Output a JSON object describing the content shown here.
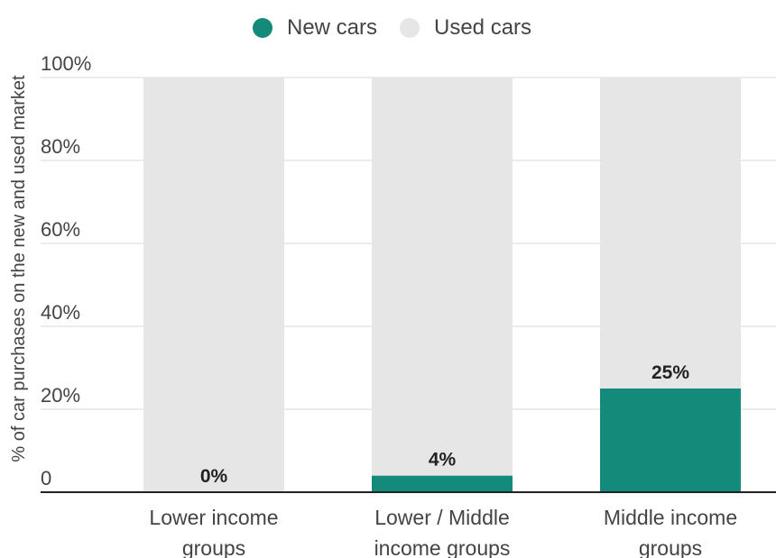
{
  "chart_data": {
    "type": "bar",
    "stacked": true,
    "categories": [
      [
        "Lower income",
        "groups"
      ],
      [
        "Lower / Middle",
        "income groups"
      ],
      [
        "Middle income",
        "groups"
      ]
    ],
    "series": [
      {
        "name": "New cars",
        "color": "#138a7a",
        "values": [
          0,
          4,
          25
        ]
      },
      {
        "name": "Used cars",
        "color": "#e6e6e6",
        "values": [
          100,
          96,
          75
        ]
      }
    ],
    "value_labels": [
      "0%",
      "4%",
      "25%"
    ],
    "ylabel": "% of car purchases on the new and used market",
    "yticks": [
      {
        "value": 0,
        "label": "0"
      },
      {
        "value": 20,
        "label": "20%"
      },
      {
        "value": 40,
        "label": "40%"
      },
      {
        "value": 60,
        "label": "60%"
      },
      {
        "value": 80,
        "label": "80%"
      },
      {
        "value": 100,
        "label": "100%"
      }
    ],
    "ylim": [
      0,
      100
    ],
    "grid": true,
    "legend_position": "top-center"
  }
}
